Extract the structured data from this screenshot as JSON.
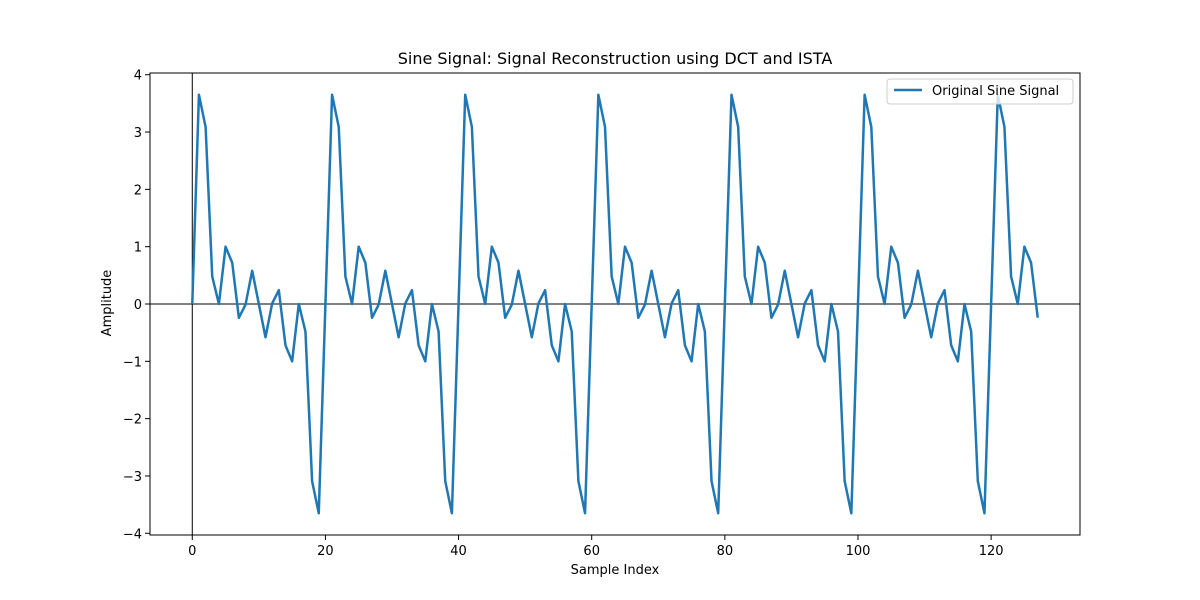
{
  "chart_data": {
    "type": "line",
    "title": "Sine Signal: Signal Reconstruction using DCT and ISTA",
    "xlabel": "Sample Index",
    "ylabel": "Amplitude",
    "xlim": [
      -6.35,
      133.35
    ],
    "ylim": [
      -4.03,
      4.03
    ],
    "xticks": [
      0,
      20,
      40,
      60,
      80,
      100,
      120
    ],
    "yticks": [
      -4,
      -3,
      -2,
      -1,
      0,
      1,
      2,
      3,
      4
    ],
    "xtick_labels": [
      "0",
      "20",
      "40",
      "60",
      "80",
      "100",
      "120"
    ],
    "ytick_labels": [
      "−4",
      "−3",
      "−2",
      "−1",
      "0",
      "1",
      "2",
      "3",
      "4"
    ],
    "grid": false,
    "reference_lines": {
      "horizontal_at": 0,
      "vertical_at": 0,
      "color": "#000000"
    },
    "legend": {
      "position": "top-right",
      "entries": [
        "Original Sine Signal"
      ]
    },
    "series": [
      {
        "name": "Original Sine Signal",
        "color": "#1f77b4",
        "period": 20,
        "length": 128,
        "cycle_values": [
          0.0,
          3.65,
          3.09,
          0.48,
          0.0,
          1.0,
          0.72,
          -0.24,
          -0.01,
          0.58,
          0.0,
          -0.58,
          0.01,
          0.24,
          -0.72,
          -1.0,
          0.0,
          -0.48,
          -3.09,
          -3.65
        ]
      }
    ]
  }
}
